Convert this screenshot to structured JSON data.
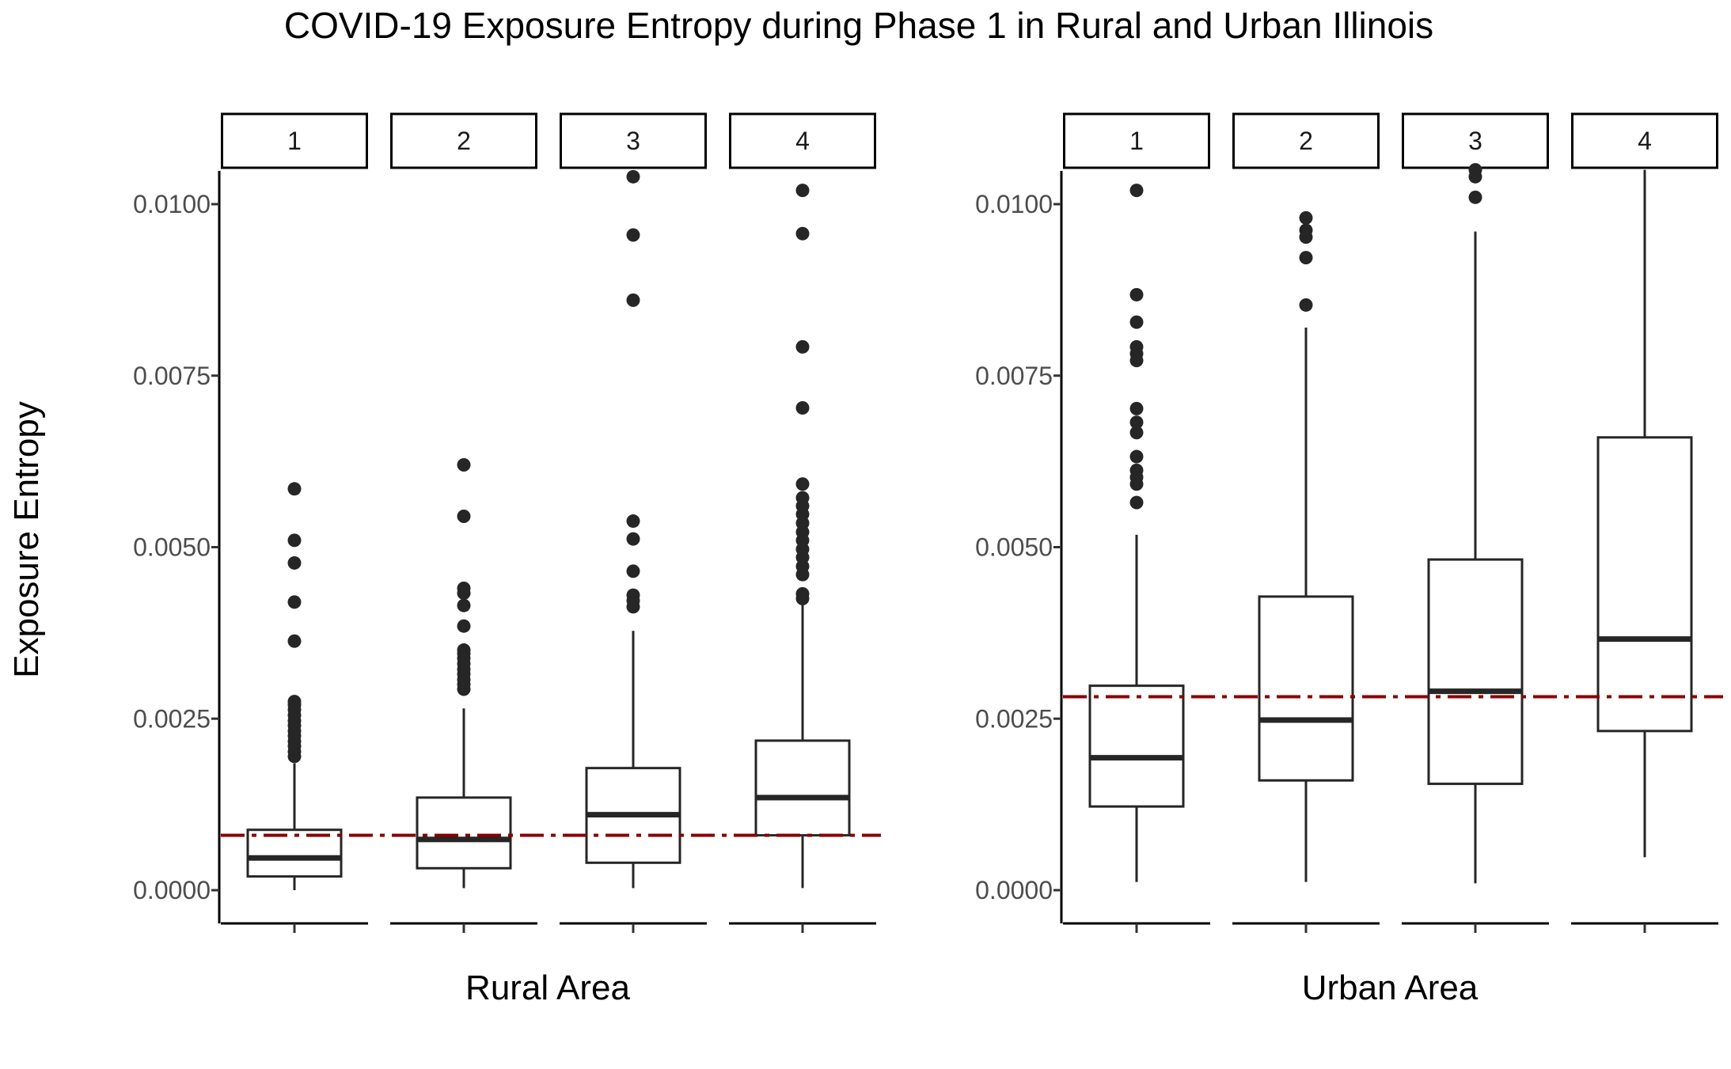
{
  "chart_data": {
    "type": "boxplot",
    "title": "COVID-19 Exposure Entropy during Phase 1 in Rural and Urban Illinois",
    "ylabel": "Exposure Entropy",
    "ylim": [
      -0.0005,
      0.0105
    ],
    "yticks": [
      0.0,
      0.0025,
      0.005,
      0.0075,
      0.01
    ],
    "ytick_labels": [
      "0.0000",
      "0.0025",
      "0.0050",
      "0.0075",
      "0.0100"
    ],
    "colors": {
      "box": "#262626",
      "reference_line": "#8b0000",
      "axis": "#000000"
    },
    "panels": [
      {
        "xlabel": "Rural Area",
        "reference_line": 0.0008,
        "facets": [
          {
            "label": "1",
            "min": 0.0,
            "q1": 0.0002,
            "median": 0.00047,
            "q3": 0.00088,
            "max": 0.00185,
            "outliers": [
              0.00585,
              0.0051,
              0.00477,
              0.0042,
              0.00363,
              0.00275,
              0.0027,
              0.00263,
              0.00255,
              0.00247,
              0.0024,
              0.00232,
              0.00225,
              0.00217,
              0.0021,
              0.00202,
              0.00195
            ]
          },
          {
            "label": "2",
            "min": 3e-05,
            "q1": 0.00032,
            "median": 0.00074,
            "q3": 0.00135,
            "max": 0.00265,
            "outliers": [
              0.0062,
              0.00545,
              0.0044,
              0.00433,
              0.00415,
              0.00385,
              0.0035,
              0.00345,
              0.00338,
              0.0033,
              0.00322,
              0.00315,
              0.00307,
              0.003,
              0.00293
            ]
          },
          {
            "label": "3",
            "min": 3e-05,
            "q1": 0.0004,
            "median": 0.0011,
            "q3": 0.00178,
            "max": 0.00378,
            "outliers": [
              0.0104,
              0.00955,
              0.0086,
              0.00538,
              0.00512,
              0.00465,
              0.0043,
              0.00422,
              0.00413
            ]
          },
          {
            "label": "4",
            "min": 3e-05,
            "q1": 0.0008,
            "median": 0.00135,
            "q3": 0.00218,
            "max": 0.00418,
            "outliers": [
              0.0102,
              0.00957,
              0.00792,
              0.00703,
              0.00592,
              0.00572,
              0.0056,
              0.00548,
              0.00535,
              0.00522,
              0.0051,
              0.00497,
              0.00485,
              0.00472,
              0.0046,
              0.00432,
              0.00425
            ]
          }
        ]
      },
      {
        "xlabel": "Urban Area",
        "reference_line": 0.00282,
        "facets": [
          {
            "label": "1",
            "min": 0.00012,
            "q1": 0.00122,
            "median": 0.00193,
            "q3": 0.00298,
            "max": 0.00518,
            "outliers": [
              0.0102,
              0.00868,
              0.00828,
              0.00792,
              0.00782,
              0.00772,
              0.00702,
              0.00682,
              0.00667,
              0.00632,
              0.00612,
              0.00602,
              0.00592,
              0.00565
            ]
          },
          {
            "label": "2",
            "min": 0.00012,
            "q1": 0.0016,
            "median": 0.00248,
            "q3": 0.00428,
            "max": 0.0082,
            "outliers": [
              0.0098,
              0.00962,
              0.00952,
              0.00922,
              0.00853
            ]
          },
          {
            "label": "3",
            "min": 0.0001,
            "q1": 0.00155,
            "median": 0.0029,
            "q3": 0.00482,
            "max": 0.0096,
            "outliers": [
              0.0105,
              0.0104,
              0.0101
            ]
          },
          {
            "label": "4",
            "min": 0.00048,
            "q1": 0.00232,
            "median": 0.00366,
            "q3": 0.0066,
            "max": 0.0105,
            "outliers": []
          }
        ]
      }
    ]
  }
}
